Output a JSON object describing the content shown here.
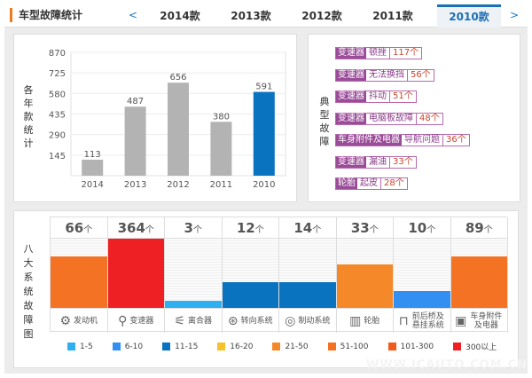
{
  "header": {
    "title": "车型故障统计",
    "prev": "<",
    "next": ">",
    "tabs": [
      "2014款",
      "2013款",
      "2012款",
      "2011款",
      "2010款"
    ],
    "active_tab": "2010款"
  },
  "year_chart": {
    "ylabel": "各年款统计"
  },
  "chart_data": [
    {
      "type": "bar",
      "title": "",
      "xlabel": "",
      "ylabel": "各年款统计",
      "categories": [
        "2014",
        "2013",
        "2012",
        "2011",
        "2010"
      ],
      "values": [
        113,
        487,
        656,
        380,
        591
      ],
      "yticks": [
        145,
        290,
        435,
        580,
        725,
        870
      ],
      "ylim": [
        0,
        870
      ],
      "highlight": "2010",
      "colors": {
        "default": "#b3b3b3",
        "highlight": "#0a73bf"
      },
      "grid": true
    },
    {
      "type": "bar",
      "title": "八大系统故障图",
      "categories": [
        "发动机",
        "变速器",
        "离合器",
        "转向系统",
        "制动系统",
        "轮胎",
        "前后桥及悬挂系统",
        "车身附件及电器"
      ],
      "values": [
        66,
        364,
        3,
        12,
        14,
        33,
        10,
        89
      ],
      "unit": "个",
      "legend": [
        {
          "label": "1-5",
          "color": "#2eb0f0"
        },
        {
          "label": "6-10",
          "color": "#3390f0"
        },
        {
          "label": "11-15",
          "color": "#0a73bf"
        },
        {
          "label": "16-20",
          "color": "#f5c22a"
        },
        {
          "label": "21-50",
          "color": "#f5892a"
        },
        {
          "label": "51-100",
          "color": "#f47224"
        },
        {
          "label": "101-300",
          "color": "#f25a1c"
        },
        {
          "label": "300以上",
          "color": "#ee2024"
        }
      ]
    }
  ],
  "typical": {
    "label": "典型故障",
    "items": [
      {
        "cat": "变速器",
        "name": "顿挫",
        "count": "117个"
      },
      {
        "cat": "变速器",
        "name": "无法换挡",
        "count": "56个"
      },
      {
        "cat": "变速器",
        "name": "抖动",
        "count": "51个"
      },
      {
        "cat": "变速器",
        "name": "电脑板故障",
        "count": "48个"
      },
      {
        "cat": "车身附件及电器",
        "name": "导航问题",
        "count": "36个"
      },
      {
        "cat": "变速器",
        "name": "漏油",
        "count": "33个"
      },
      {
        "cat": "轮胎",
        "name": "起皮",
        "count": "28个"
      }
    ]
  },
  "systems": {
    "label": "八大系统故障图",
    "unit": "个",
    "items": [
      {
        "name": "发动机",
        "count": "66",
        "icon": "engine-icon",
        "color": "#f47224",
        "level": 0.75
      },
      {
        "name": "变速器",
        "count": "364",
        "icon": "gear-shift-icon",
        "color": "#ee2024",
        "level": 1.0
      },
      {
        "name": "离合器",
        "count": "3",
        "icon": "clutch-icon",
        "color": "#2eb0f0",
        "level": 0.1
      },
      {
        "name": "转向系统",
        "count": "12",
        "icon": "steering-wheel-icon",
        "color": "#0a73bf",
        "level": 0.37
      },
      {
        "name": "制动系统",
        "count": "14",
        "icon": "brake-disc-icon",
        "color": "#0a73bf",
        "level": 0.37
      },
      {
        "name": "轮胎",
        "count": "33",
        "icon": "tire-icon",
        "color": "#f5892a",
        "level": 0.63
      },
      {
        "name": "前后桥及悬挂系统",
        "count": "10",
        "icon": "axle-icon",
        "color": "#3390f0",
        "level": 0.25
      },
      {
        "name": "车身附件及电器",
        "count": "89",
        "icon": "battery-icon",
        "color": "#f47224",
        "level": 0.75
      }
    ]
  },
  "watermark": "WWW.ICAUTO.COM.CN"
}
